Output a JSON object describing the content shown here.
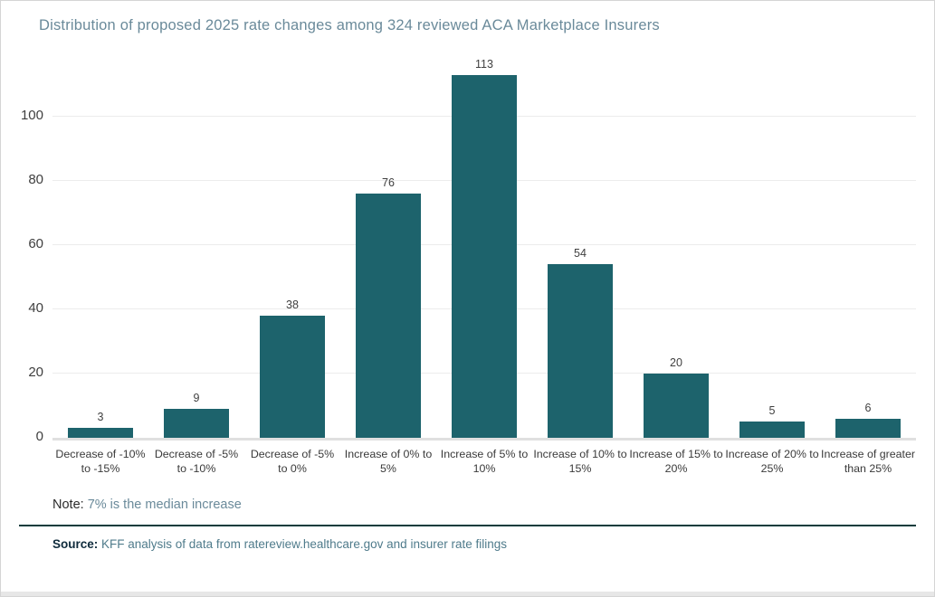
{
  "page": {
    "title": "Distribution of proposed 2025 rate changes among 324 reviewed ACA Marketplace  Insurers"
  },
  "chart_data": {
    "type": "bar",
    "title": "Distribution of proposed 2025 rate changes among 324 reviewed ACA Marketplace  Insurers",
    "categories": [
      "Decrease of -10% to -15%",
      "Decrease of -5% to -10%",
      "Decrease of -5% to 0%",
      "Increase of 0% to 5%",
      "Increase of 5% to 10%",
      "Increase of 10% to 15%",
      "Increase of 15% to 20%",
      "Increase of 20% to 25%",
      "Increase of greater than 25%"
    ],
    "values": [
      3,
      9,
      38,
      76,
      113,
      54,
      20,
      5,
      6
    ],
    "y_ticks": [
      0,
      20,
      40,
      60,
      80,
      100
    ],
    "ylim": [
      0,
      118
    ],
    "grid": true,
    "value_labels": true,
    "legend": "none",
    "xlabel": "",
    "ylabel": "",
    "bar_color": "#1d636c"
  },
  "footer": {
    "note_label": "Note:",
    "note_text": " 7% is the median increase",
    "source_label": "Source:",
    "source_text": " KFF analysis of data from ratereview.healthcare.gov and insurer rate filings"
  },
  "colors": {
    "bar": "#1d636c",
    "title_text": "#6a8a9a",
    "axis_text": "#3f3f3f",
    "gridline": "#ececec",
    "baseline": "#e0e0e0",
    "divider": "#0e3c3c",
    "window_edge": "#e7e7e7"
  }
}
